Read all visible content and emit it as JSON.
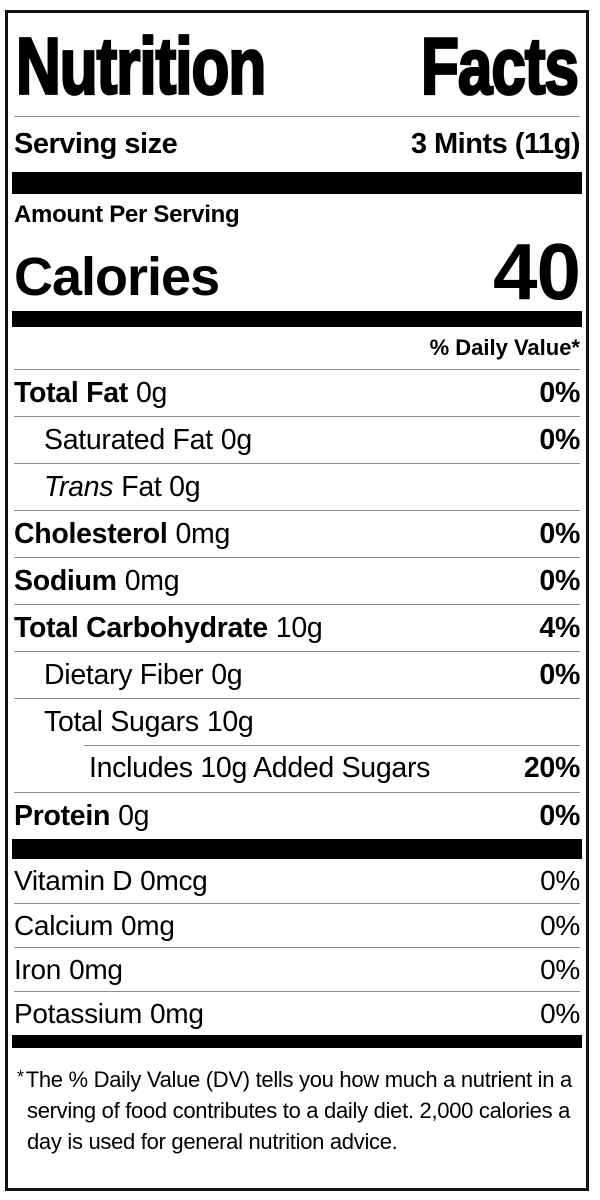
{
  "label": {
    "title": "Nutrition Facts",
    "title_words": {
      "first": "Nutrition",
      "second": "Facts"
    },
    "serving": {
      "label": "Serving size",
      "value": "3 Mints (11g)"
    },
    "amount_per_serving": "Amount Per Serving",
    "calories": {
      "label": "Calories",
      "value": "40"
    },
    "daily_value_header": "% Daily Value*",
    "nutrients": {
      "rows": [
        {
          "name": "Total Fat",
          "amount": "0g",
          "dv": "0%"
        },
        {
          "name": "Saturated Fat",
          "amount": "0g",
          "dv": "0%"
        },
        {
          "name": "Trans",
          "amount": "Fat 0g",
          "dv": ""
        },
        {
          "name": "Cholesterol",
          "amount": "0mg",
          "dv": "0%"
        },
        {
          "name": "Sodium",
          "amount": "0mg",
          "dv": "0%"
        },
        {
          "name": "Total Carbohydrate",
          "amount": "10g",
          "dv": "4%"
        },
        {
          "name": "Dietary Fiber",
          "amount": "0g",
          "dv": "0%"
        },
        {
          "name": "Total Sugars",
          "amount": "10g",
          "dv": ""
        },
        {
          "name": "Includes 10g Added Sugars",
          "amount": "",
          "dv": "20%"
        },
        {
          "name": "Protein",
          "amount": "0g",
          "dv": "0%"
        }
      ]
    },
    "vitamins": {
      "rows": [
        {
          "name": "Vitamin D",
          "amount": "0mcg",
          "dv": "0%"
        },
        {
          "name": "Calcium",
          "amount": "0mg",
          "dv": "0%"
        },
        {
          "name": "Iron",
          "amount": "0mg",
          "dv": "0%"
        },
        {
          "name": "Potassium",
          "amount": "0mg",
          "dv": "0%"
        }
      ]
    },
    "footnote": {
      "symbol": "*",
      "text": "The % Daily Value (DV) tells you how much a nutrient in a serving of food contributes to a daily diet. 2,000 calories a day is used for general nutrition advice."
    },
    "colors": {
      "ink": "#000000",
      "paper": "#ffffff",
      "divider": "#8d8d8d"
    }
  }
}
